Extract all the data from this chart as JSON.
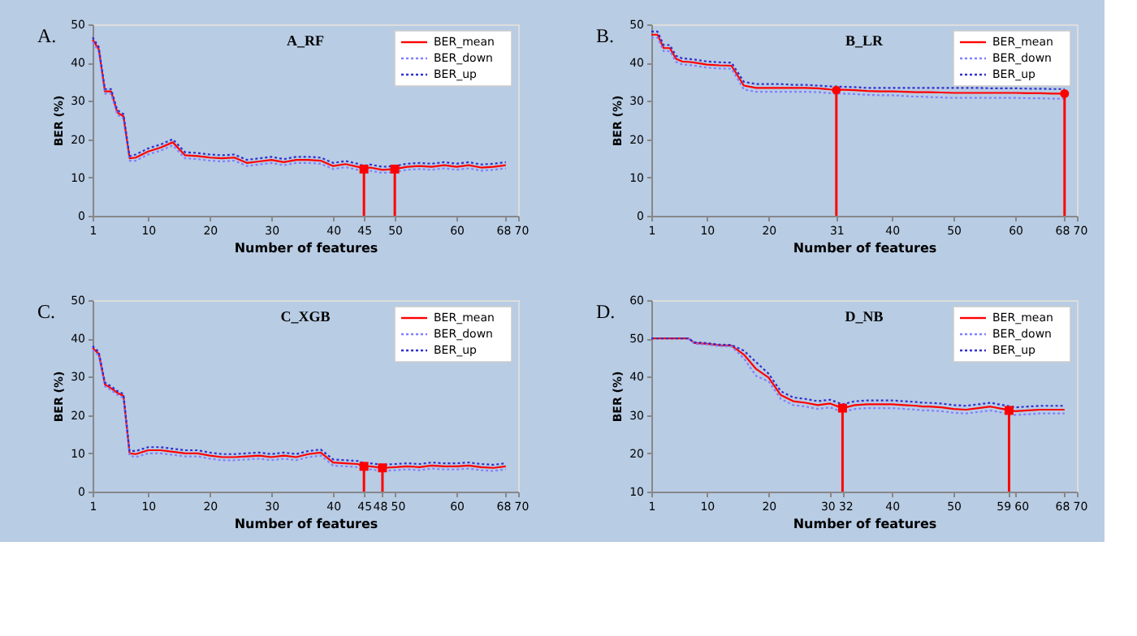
{
  "chart_data": [
    {
      "type": "line",
      "title": "A_RF",
      "xlabel": "Number of features",
      "ylabel": "BER (%)",
      "annotations": [
        "A."
      ],
      "x": [
        1,
        2,
        3,
        4,
        5,
        6,
        7,
        8,
        10,
        12,
        14,
        16,
        18,
        20,
        22,
        24,
        26,
        28,
        30,
        32,
        34,
        36,
        38,
        40,
        42,
        44,
        45,
        46,
        48,
        50,
        52,
        54,
        56,
        58,
        60,
        62,
        64,
        66,
        68
      ],
      "series": [
        {
          "name": "BER_mean",
          "color": "#ff0000",
          "line_style": "solid",
          "values": [
            46,
            43.5,
            32.5,
            32.5,
            27,
            26,
            15,
            15.2,
            16.8,
            17.8,
            19.2,
            15.8,
            15.6,
            15.2,
            15.0,
            15.2,
            13.8,
            14.2,
            14.6,
            14.0,
            14.6,
            14.6,
            14.4,
            13.0,
            13.5,
            12.8,
            12.2,
            12.6,
            12.0,
            12.2,
            12.8,
            13.0,
            12.8,
            13.2,
            12.8,
            13.2,
            12.6,
            12.8,
            13.2
          ]
        },
        {
          "name": "BER_down",
          "color": "#8080ff",
          "line_style": "dotted",
          "values": [
            45.4,
            42.9,
            31.9,
            31.9,
            26.4,
            25.4,
            14.4,
            14.4,
            16.0,
            17.0,
            18.4,
            15.0,
            14.8,
            14.4,
            14.2,
            14.4,
            13.0,
            13.4,
            13.8,
            13.2,
            13.8,
            13.8,
            13.6,
            12.2,
            12.7,
            12.0,
            11.4,
            11.8,
            11.2,
            11.4,
            12.0,
            12.2,
            12.0,
            12.4,
            12.0,
            12.4,
            11.8,
            12.0,
            12.4
          ]
        },
        {
          "name": "BER_up",
          "color": "#3030d0",
          "line_style": "dotted",
          "values": [
            46.6,
            44.1,
            33.1,
            33.1,
            27.6,
            26.6,
            15.6,
            16.0,
            17.6,
            18.6,
            20.0,
            16.6,
            16.4,
            16.0,
            15.8,
            16.0,
            14.6,
            15.0,
            15.4,
            14.8,
            15.4,
            15.4,
            15.2,
            13.8,
            14.3,
            13.6,
            13.0,
            13.4,
            12.8,
            13.0,
            13.6,
            13.8,
            13.6,
            14.0,
            13.6,
            14.0,
            13.4,
            13.6,
            14.0
          ]
        },
        {
          "type": "lollipop",
          "color": "#ff0000",
          "marker": "square",
          "x": [
            45,
            50
          ],
          "values": [
            12.2,
            12.2
          ]
        }
      ],
      "xlim": [
        1,
        70
      ],
      "xticks": [
        1,
        10,
        20,
        30,
        40,
        45,
        50,
        60,
        68,
        70
      ],
      "ylim": [
        0,
        50
      ],
      "yticks": [
        0,
        10,
        20,
        30,
        40,
        50
      ],
      "legend": "top right",
      "grid": false
    },
    {
      "type": "line",
      "title": "B_LR",
      "xlabel": "Number of features",
      "ylabel": "BER (%)",
      "annotations": [
        "B."
      ],
      "x": [
        1,
        2,
        3,
        4,
        5,
        6,
        7,
        8,
        10,
        12,
        14,
        16,
        18,
        20,
        22,
        24,
        26,
        28,
        30,
        32,
        34,
        36,
        38,
        40,
        42,
        44,
        45,
        46,
        48,
        50,
        52,
        54,
        56,
        58,
        60,
        62,
        64,
        66,
        68
      ],
      "series": [
        {
          "name": "BER_mean",
          "color": "#ff0000",
          "line_style": "solid",
          "values": [
            47.3,
            47.3,
            43.8,
            43.8,
            41,
            40.3,
            40.2,
            40,
            39.5,
            39.3,
            39.2,
            34,
            33.4,
            33.4,
            33.4,
            33.4,
            33.4,
            33.3,
            33.0,
            32.9,
            32.8,
            32.6,
            32.5,
            32.5,
            32.4,
            32.3,
            32.3,
            32.3,
            32.2,
            32.1,
            32.1,
            32.1,
            32.1,
            32.1,
            32.1,
            32.0,
            32.0,
            31.9,
            31.9
          ]
        },
        {
          "name": "BER_down",
          "color": "#8080ff",
          "line_style": "dotted",
          "values": [
            46.5,
            46.5,
            43.0,
            43.0,
            40.2,
            39.5,
            39.4,
            39.2,
            38.7,
            38.5,
            38.4,
            33.0,
            32.4,
            32.4,
            32.4,
            32.4,
            32.4,
            32.3,
            32.0,
            31.9,
            31.8,
            31.6,
            31.5,
            31.5,
            31.3,
            31.1,
            31.1,
            31.0,
            30.9,
            30.8,
            30.8,
            30.8,
            30.8,
            30.8,
            30.8,
            30.7,
            30.7,
            30.6,
            30.6
          ]
        },
        {
          "name": "BER_up",
          "color": "#3030d0",
          "line_style": "dotted",
          "values": [
            48.1,
            48.1,
            44.6,
            44.6,
            41.8,
            41.1,
            41.0,
            40.8,
            40.3,
            40.1,
            40.0,
            35.0,
            34.4,
            34.4,
            34.4,
            34.2,
            34.2,
            34.0,
            33.8,
            33.7,
            33.6,
            33.4,
            33.4,
            33.4,
            33.4,
            33.4,
            33.4,
            33.4,
            33.4,
            33.4,
            33.4,
            33.4,
            33.3,
            33.3,
            33.3,
            33.2,
            33.2,
            33.1,
            33.1
          ]
        },
        {
          "type": "lollipop",
          "color": "#ff0000",
          "marker": "circle",
          "x": [
            31,
            68
          ],
          "values": [
            32.8,
            31.9
          ]
        }
      ],
      "xlim": [
        1,
        70
      ],
      "xticks": [
        1,
        10,
        20,
        31,
        40,
        50,
        60,
        68,
        70
      ],
      "ylim": [
        0,
        50
      ],
      "yticks": [
        0,
        10,
        20,
        30,
        40,
        50
      ],
      "legend": "top right",
      "grid": false
    },
    {
      "type": "line",
      "title": "C_XGB",
      "xlabel": "Number of features",
      "ylabel": "BER (%)",
      "annotations": [
        "C."
      ],
      "x": [
        1,
        2,
        3,
        4,
        5,
        6,
        7,
        8,
        10,
        12,
        14,
        16,
        18,
        20,
        22,
        24,
        26,
        28,
        30,
        32,
        34,
        36,
        38,
        40,
        42,
        44,
        45,
        46,
        48,
        50,
        52,
        54,
        56,
        58,
        60,
        62,
        64,
        66,
        68
      ],
      "series": [
        {
          "name": "BER_mean",
          "color": "#ff0000",
          "line_style": "solid",
          "values": [
            37.5,
            36,
            28,
            27,
            25.8,
            25,
            10,
            9.8,
            10.8,
            10.8,
            10.4,
            10.0,
            10.0,
            9.4,
            9.0,
            9.0,
            9.2,
            9.4,
            9.0,
            9.4,
            9.0,
            9.8,
            10.2,
            7.6,
            7.4,
            7.2,
            6.6,
            6.6,
            6.2,
            6.4,
            6.6,
            6.4,
            6.8,
            6.6,
            6.6,
            6.8,
            6.4,
            6.2,
            6.6
          ]
        },
        {
          "name": "BER_down",
          "color": "#8080ff",
          "line_style": "dotted",
          "values": [
            37.0,
            35.5,
            27.5,
            26.5,
            25.3,
            24.5,
            9.4,
            9.0,
            10.0,
            10.0,
            9.6,
            9.2,
            9.2,
            8.6,
            8.2,
            8.2,
            8.4,
            8.6,
            8.2,
            8.6,
            8.2,
            9.0,
            9.4,
            6.8,
            6.6,
            6.4,
            5.8,
            5.8,
            5.4,
            5.6,
            5.8,
            5.6,
            6.0,
            5.8,
            5.8,
            6.0,
            5.6,
            5.4,
            5.8
          ]
        },
        {
          "name": "BER_up",
          "color": "#3030d0",
          "line_style": "dotted",
          "values": [
            38.0,
            36.5,
            28.5,
            27.5,
            26.3,
            25.5,
            10.6,
            10.6,
            11.6,
            11.6,
            11.2,
            10.8,
            10.8,
            10.2,
            9.8,
            9.8,
            10.0,
            10.2,
            9.8,
            10.2,
            9.8,
            10.6,
            11.0,
            8.4,
            8.2,
            8.0,
            7.4,
            7.4,
            7.0,
            7.2,
            7.4,
            7.2,
            7.6,
            7.4,
            7.4,
            7.6,
            7.2,
            7.0,
            7.4
          ]
        },
        {
          "type": "lollipop",
          "color": "#ff0000",
          "marker": "square",
          "x": [
            45,
            48
          ],
          "values": [
            6.6,
            6.2
          ]
        }
      ],
      "xlim": [
        1,
        70
      ],
      "xticks": [
        1,
        10,
        20,
        30,
        40,
        45,
        48,
        50,
        60,
        68,
        70
      ],
      "ylim": [
        0,
        50
      ],
      "yticks": [
        0,
        10,
        20,
        30,
        40,
        50
      ],
      "legend": "top right",
      "grid": false
    },
    {
      "type": "line",
      "title": "D_NB",
      "xlabel": "Number of features",
      "ylabel": "BER (%)",
      "annotations": [
        "D."
      ],
      "x": [
        1,
        2,
        3,
        4,
        5,
        6,
        7,
        8,
        10,
        12,
        14,
        16,
        18,
        20,
        22,
        24,
        26,
        28,
        30,
        32,
        34,
        36,
        38,
        40,
        42,
        44,
        45,
        46,
        48,
        50,
        52,
        54,
        56,
        58,
        60,
        62,
        64,
        66,
        68
      ],
      "series": [
        {
          "name": "BER_mean",
          "color": "#ff0000",
          "line_style": "solid",
          "values": [
            50,
            50,
            50,
            50,
            50,
            50,
            50,
            48.8,
            48.6,
            48.2,
            48.1,
            45.8,
            42,
            39.8,
            35.2,
            33.6,
            33.2,
            32.6,
            33.0,
            31.8,
            32.6,
            32.8,
            32.8,
            32.8,
            32.6,
            32.4,
            32.2,
            32.2,
            32.0,
            31.6,
            31.4,
            31.8,
            32.2,
            31.6,
            31.0,
            31.2,
            31.4,
            31.4,
            31.4
          ]
        },
        {
          "name": "BER_down",
          "color": "#8080ff",
          "line_style": "dotted",
          "values": [
            null,
            null,
            null,
            null,
            null,
            null,
            50,
            48.6,
            48.4,
            48.0,
            47.9,
            44.8,
            40.2,
            38.8,
            34.2,
            32.6,
            32.2,
            31.6,
            32.0,
            30.8,
            31.6,
            31.8,
            31.8,
            31.8,
            31.6,
            31.4,
            31.2,
            31.2,
            31.0,
            30.6,
            30.4,
            30.8,
            31.2,
            30.6,
            30.0,
            30.2,
            30.4,
            30.4,
            30.4
          ]
        },
        {
          "name": "BER_up",
          "color": "#3030d0",
          "line_style": "dotted",
          "values": [
            50,
            50,
            50,
            50,
            50,
            50,
            50,
            49.0,
            48.8,
            48.4,
            48.3,
            46.8,
            43.8,
            40.8,
            36.2,
            34.6,
            34.2,
            33.6,
            34.0,
            32.8,
            33.6,
            33.8,
            33.8,
            33.8,
            33.6,
            33.4,
            33.2,
            33.2,
            33.0,
            32.6,
            32.4,
            32.8,
            33.2,
            32.6,
            32.0,
            32.2,
            32.4,
            32.4,
            32.4
          ]
        },
        {
          "type": "lollipop",
          "color": "#ff0000",
          "marker": "square",
          "x": [
            32,
            59
          ],
          "values": [
            31.8,
            31.2
          ]
        }
      ],
      "xlim": [
        1,
        70
      ],
      "xticks": [
        1,
        10,
        20,
        30,
        32,
        40,
        50,
        59,
        60,
        68,
        70
      ],
      "ylim": [
        10,
        60
      ],
      "yticks": [
        10,
        20,
        30,
        40,
        50,
        60
      ],
      "legend": "top right",
      "grid": false
    }
  ]
}
